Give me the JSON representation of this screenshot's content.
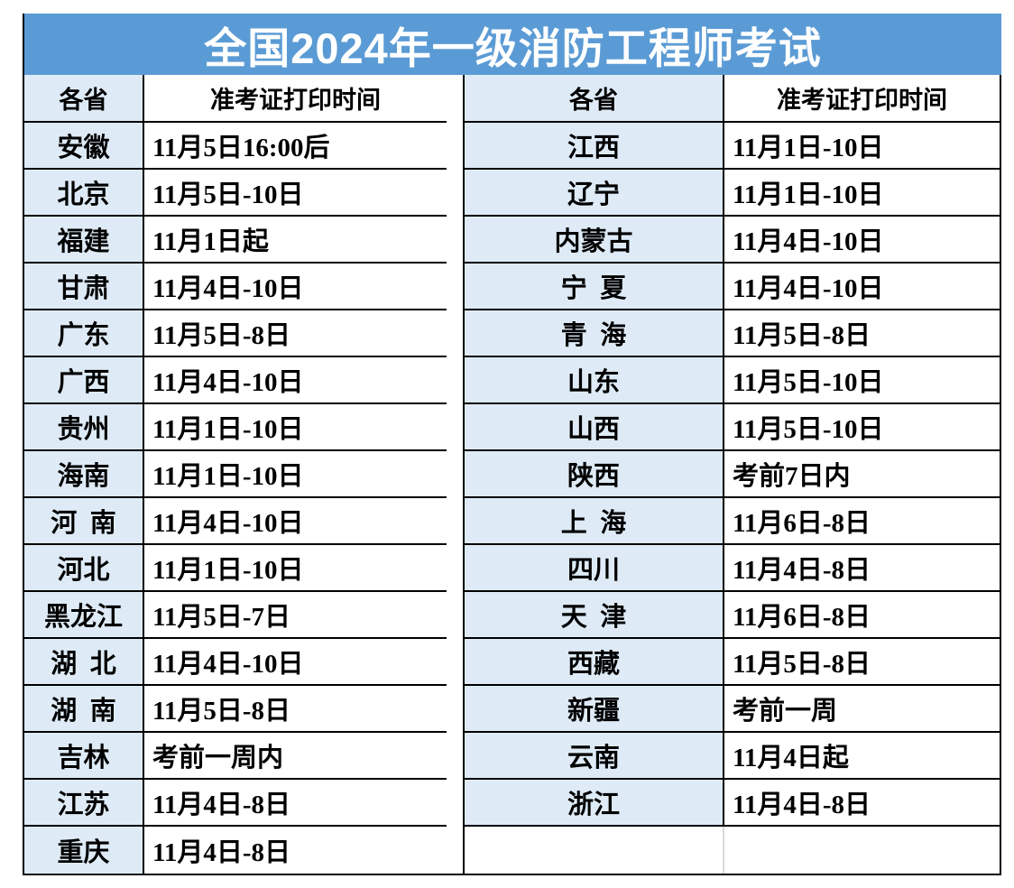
{
  "title": "全国2024年一级消防工程师考试",
  "colors": {
    "title_bg": "#5B9BD5",
    "title_text": "#FFFFFF",
    "province_bg": "#DEEBF7",
    "cell_bg": "#FFFFFF",
    "border_color": "#000000",
    "divider_light": "#D9D9D9",
    "cell_text": "#000000"
  },
  "table": {
    "headers": [
      "各省",
      "准考证打印时间",
      "各省",
      "准考证打印时间"
    ],
    "rows": [
      [
        "安徽",
        "11月5日16:00后",
        "江西",
        "11月1日-10日"
      ],
      [
        "北京",
        "11月5日-10日",
        "辽宁",
        "11月1日-10日"
      ],
      [
        "福建",
        "11月1日起",
        "内蒙古",
        "11月4日-10日"
      ],
      [
        "甘肃",
        "11月4日-10日",
        "宁 夏",
        "11月4日-10日"
      ],
      [
        "广东",
        "11月5日-8日",
        "青 海",
        "11月5日-8日"
      ],
      [
        "广西",
        "11月4日-10日",
        "山东",
        "11月5日-10日"
      ],
      [
        "贵州",
        "11月1日-10日",
        "山西",
        "11月5日-10日"
      ],
      [
        "海南",
        "11月1日-10日",
        "陕西",
        "考前7日内"
      ],
      [
        "河 南",
        "11月4日-10日",
        "上 海",
        "11月6日-8日"
      ],
      [
        "河北",
        "11月1日-10日",
        "四川",
        "11月4日-8日"
      ],
      [
        "黑龙江",
        "11月5日-7日",
        "天 津",
        "11月6日-8日"
      ],
      [
        "湖 北",
        "11月4日-10日",
        "西藏",
        "11月5日-8日"
      ],
      [
        "湖 南",
        "11月5日-8日",
        "新疆",
        "考前一周"
      ],
      [
        "吉林",
        "考前一周内",
        "云南",
        "11月4日起"
      ],
      [
        "江苏",
        "11月4日-8日",
        "浙江",
        "11月4日-8日"
      ],
      [
        "重庆",
        "11月4日-8日",
        "",
        ""
      ]
    ]
  }
}
